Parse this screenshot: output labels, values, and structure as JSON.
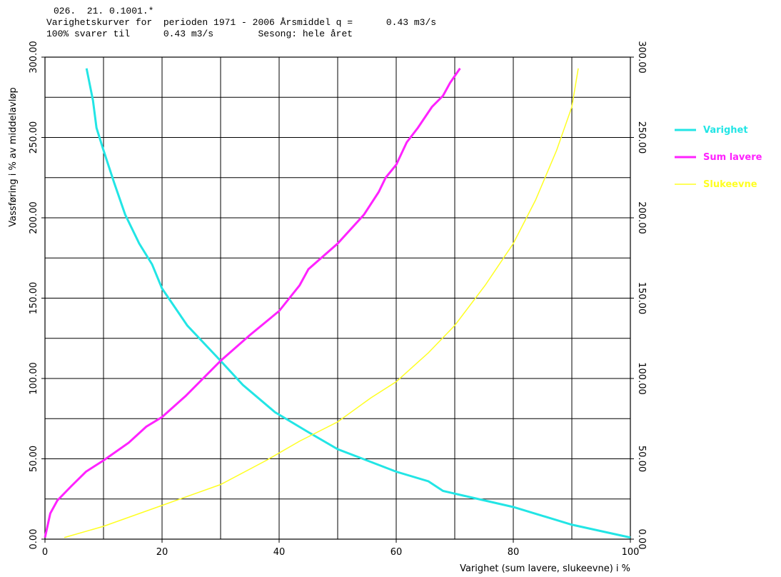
{
  "chart_data": {
    "type": "line",
    "header": [
      "026.  21. 0.1001.*",
      "Varighetskurver for  perioden 1971 - 2006 Årsmiddel q =      0.43 m3/s",
      "100% svarer til      0.43 m3/s        Sesong: hele året"
    ],
    "x_label": "Varighet (sum lavere, slukeevne) i %",
    "y_label": "Vassføring i % av middelavløp",
    "xlim": [
      0,
      100
    ],
    "xticks": [
      0,
      20,
      40,
      60,
      80,
      100
    ],
    "xgrid": [
      10,
      20,
      30,
      40,
      50,
      60,
      70,
      80,
      90
    ],
    "ylim": [
      0,
      300
    ],
    "yticks": [
      {
        "value": 0,
        "label": "0.00"
      },
      {
        "value": 50,
        "label": "50.00"
      },
      {
        "value": 100,
        "label": "100.00"
      },
      {
        "value": 150,
        "label": "150.00"
      },
      {
        "value": 200,
        "label": "200.00"
      },
      {
        "value": 250,
        "label": "250.00"
      },
      {
        "value": 300,
        "label": "300.00"
      }
    ],
    "ygrid": [
      25,
      50,
      75,
      100,
      125,
      150,
      175,
      200,
      225,
      250,
      275
    ],
    "series": [
      {
        "name": "Varighet",
        "color": "#22e5e5",
        "x": [
          7.1,
          8.2,
          8.8,
          10,
          11.8,
          13.7,
          16.1,
          18.3,
          20,
          24.3,
          30,
          33.8,
          39.3,
          44.8,
          50,
          60,
          65.5,
          68,
          80,
          90,
          100
        ],
        "values": [
          293,
          273,
          256,
          242,
          222,
          202,
          184,
          171,
          156,
          133,
          111,
          96,
          79,
          67,
          56,
          42,
          36,
          30,
          20,
          9,
          1
        ]
      },
      {
        "name": "Sum lavere",
        "color": "#ff22ff",
        "x": [
          0,
          0.9,
          2.1,
          4.5,
          7,
          10,
          14.3,
          17.3,
          20,
          24,
          30,
          35,
          40,
          43.5,
          45,
          50,
          54.5,
          57,
          58.2,
          60,
          61.8,
          63.7,
          66.1,
          68,
          69.2,
          70.9
        ],
        "values": [
          1,
          16,
          24,
          33,
          42,
          49,
          60,
          70,
          76,
          89,
          111,
          127,
          142,
          158,
          168,
          184,
          202,
          216,
          225,
          233,
          247,
          256,
          269,
          276,
          284,
          293
        ]
      },
      {
        "name": "Slukeevne",
        "color": "#ffff22",
        "x": [
          3.3,
          10,
          20,
          30,
          37.8,
          43.5,
          50,
          55.7,
          60,
          65.5,
          70,
          75.2,
          80,
          83.8,
          87.4,
          90,
          91.1
        ],
        "values": [
          1,
          8,
          21,
          34,
          49,
          61,
          73,
          88,
          98,
          116,
          133,
          158,
          184,
          211,
          242,
          269,
          293
        ]
      }
    ]
  }
}
